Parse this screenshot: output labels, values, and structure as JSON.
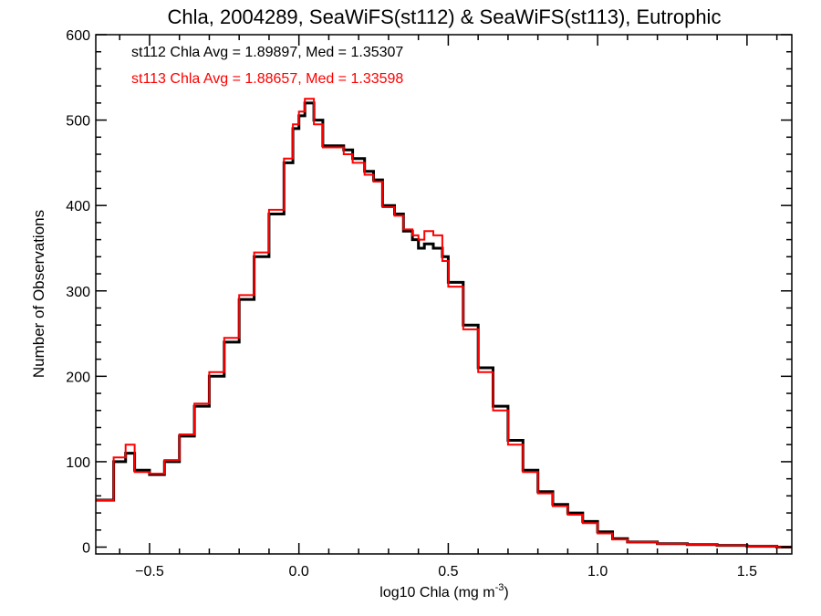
{
  "chart_data": {
    "type": "line",
    "step": true,
    "title": "Chla, 2004289, SeaWiFS(st112) & SeaWiFS(st113), Eutrophic",
    "xlabel_main": "log10 Chla (mg m",
    "xlabel_sup": "-3",
    "xlabel_close": ")",
    "ylabel": "Number of Observations",
    "xlim": [
      -0.68,
      1.65
    ],
    "ylim": [
      -8,
      600
    ],
    "xticks": [
      -0.5,
      0.0,
      0.5,
      1.0,
      1.5
    ],
    "xtick_labels": [
      "−0.5",
      "0.0",
      "0.5",
      "1.0",
      "1.5"
    ],
    "yticks": [
      0,
      100,
      200,
      300,
      400,
      500,
      600
    ],
    "ytick_labels": [
      "0",
      "100",
      "200",
      "300",
      "400",
      "500",
      "600"
    ],
    "grid": false,
    "annotations": [
      {
        "text": "st112 Chla Avg = 1.89897, Med = 1.35307",
        "color": "#000000"
      },
      {
        "text": "st113 Chla Avg = 1.88657, Med = 1.33598",
        "color": "#ff0000"
      }
    ],
    "series": [
      {
        "color": "#000000",
        "x": [
          -0.68,
          -0.62,
          -0.58,
          -0.55,
          -0.5,
          -0.45,
          -0.4,
          -0.35,
          -0.3,
          -0.25,
          -0.2,
          -0.15,
          -0.1,
          -0.05,
          -0.02,
          0.0,
          0.02,
          0.05,
          0.08,
          0.12,
          0.15,
          0.18,
          0.22,
          0.25,
          0.28,
          0.32,
          0.35,
          0.38,
          0.4,
          0.42,
          0.45,
          0.48,
          0.5,
          0.55,
          0.6,
          0.65,
          0.7,
          0.75,
          0.8,
          0.85,
          0.9,
          0.95,
          1.0,
          1.05,
          1.1,
          1.2,
          1.3,
          1.4,
          1.5,
          1.6,
          1.65
        ],
        "y": [
          55,
          100,
          110,
          90,
          85,
          100,
          130,
          165,
          200,
          240,
          290,
          340,
          390,
          450,
          490,
          505,
          520,
          500,
          470,
          470,
          465,
          455,
          440,
          430,
          400,
          390,
          370,
          360,
          350,
          355,
          350,
          340,
          310,
          260,
          210,
          165,
          125,
          90,
          65,
          50,
          40,
          30,
          18,
          10,
          6,
          4,
          3,
          2,
          1,
          0,
          0
        ]
      },
      {
        "color": "#ff0000",
        "x": [
          -0.68,
          -0.62,
          -0.58,
          -0.55,
          -0.5,
          -0.45,
          -0.4,
          -0.35,
          -0.3,
          -0.25,
          -0.2,
          -0.15,
          -0.1,
          -0.05,
          -0.02,
          0.0,
          0.02,
          0.05,
          0.08,
          0.12,
          0.15,
          0.18,
          0.22,
          0.25,
          0.28,
          0.32,
          0.35,
          0.38,
          0.4,
          0.42,
          0.45,
          0.48,
          0.5,
          0.55,
          0.6,
          0.65,
          0.7,
          0.75,
          0.8,
          0.85,
          0.9,
          0.95,
          1.0,
          1.05,
          1.1,
          1.2,
          1.3,
          1.4,
          1.5,
          1.6,
          1.65
        ],
        "y": [
          55,
          105,
          120,
          88,
          86,
          102,
          132,
          168,
          205,
          245,
          295,
          345,
          395,
          455,
          495,
          510,
          525,
          495,
          468,
          468,
          460,
          450,
          436,
          428,
          398,
          388,
          372,
          365,
          360,
          370,
          365,
          335,
          305,
          255,
          205,
          160,
          120,
          88,
          63,
          48,
          38,
          28,
          16,
          9,
          6,
          4,
          3,
          2,
          1,
          0,
          0
        ]
      }
    ]
  }
}
